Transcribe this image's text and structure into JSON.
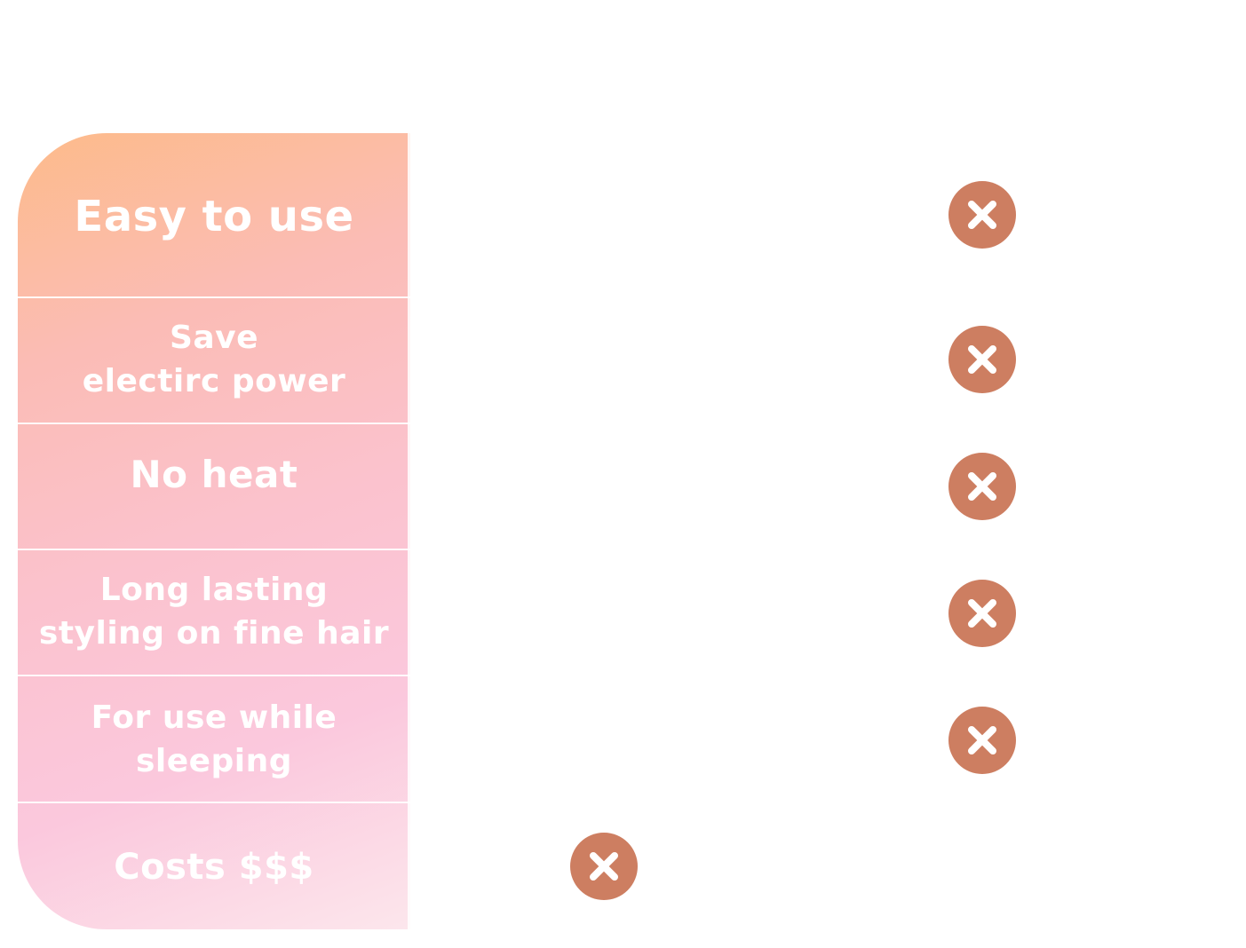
{
  "colors": {
    "x_mark_fill": "#cd7e61",
    "x_mark_glyph": "#ffffff",
    "label_text": "#ffffff",
    "gradient": [
      "#fdbb8a",
      "#fbbcb5",
      "#fbc2cd",
      "#fbc8dd",
      "#fce6ec"
    ]
  },
  "features": [
    {
      "label": "Easy to use",
      "mark_icon": "x-circle-icon"
    },
    {
      "label": "Save\nelectirc power",
      "mark_icon": "x-circle-icon"
    },
    {
      "label": "No heat",
      "mark_icon": "x-circle-icon"
    },
    {
      "label": "Long lasting\nstyling on fine hair",
      "mark_icon": "x-circle-icon"
    },
    {
      "label": "For use while\nsleeping",
      "mark_icon": "x-circle-icon"
    },
    {
      "label": "Costs $$$",
      "mark_icon": "x-circle-icon"
    }
  ]
}
